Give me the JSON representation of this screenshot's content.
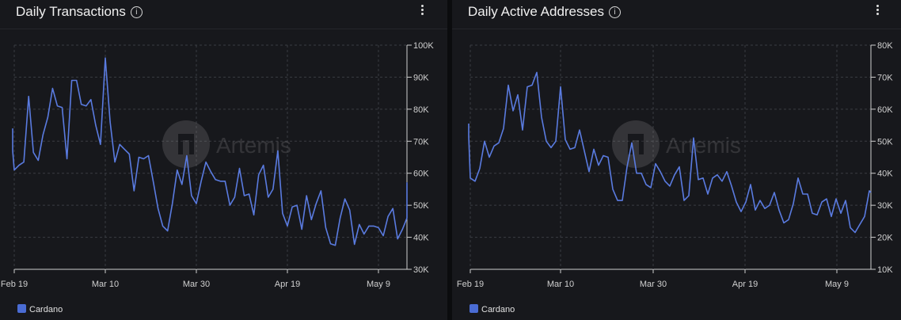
{
  "panels": [
    {
      "title": "Daily Transactions",
      "info_icon": "info-icon",
      "menu_icon": "kebab-menu-icon",
      "watermark": "Artemis",
      "legend": "Cardano"
    },
    {
      "title": "Daily Active Addresses",
      "info_icon": "info-icon",
      "menu_icon": "kebab-menu-icon",
      "watermark": "Artemis",
      "legend": "Cardano"
    }
  ],
  "colors": {
    "background": "#17181c",
    "series": "#5a7be0",
    "grid": "#3a3c42",
    "axis_text": "#d0d0d0"
  },
  "chart_data": [
    {
      "type": "line",
      "title": "Daily Transactions",
      "x_start": "2025-02-17",
      "x_tick_labels": [
        "Feb 19",
        "Mar 10",
        "Mar 30",
        "Apr 19",
        "May 9"
      ],
      "y_tick_labels": [
        "100K",
        "90K",
        "80K",
        "70K",
        "60K",
        "50K",
        "40K",
        "30K"
      ],
      "ylim": [
        30000,
        100000
      ],
      "y_axis_position": "right",
      "grid": true,
      "legend_position": "bottom-left",
      "series": [
        {
          "name": "Cardano",
          "color": "#5a7be0",
          "values": [
            74000,
            67000,
            61000,
            62500,
            63500,
            84000,
            66500,
            64000,
            72000,
            77500,
            86500,
            81000,
            80500,
            64500,
            89000,
            89000,
            81500,
            81000,
            83000,
            75000,
            69000,
            96000,
            76000,
            63500,
            69000,
            67500,
            66000,
            54500,
            65000,
            64500,
            65500,
            57500,
            49000,
            43500,
            42000,
            50500,
            61000,
            56500,
            65500,
            53000,
            50500,
            57500,
            63500,
            60500,
            58000,
            57500,
            57500,
            50000,
            52500,
            61500,
            53000,
            53500,
            47000,
            59500,
            62500,
            52500,
            55000,
            67000,
            47500,
            43500,
            49500,
            50000,
            42500,
            53000,
            45500,
            50500,
            54500,
            43000,
            38000,
            37500,
            46000,
            52000,
            48500,
            37800,
            44000,
            41000,
            43500,
            43500,
            43000,
            40500,
            46500,
            49000,
            39500,
            42500,
            46000,
            50000,
            57000,
            48000
          ]
        }
      ]
    },
    {
      "type": "line",
      "title": "Daily Active Addresses",
      "x_start": "2025-02-17",
      "x_tick_labels": [
        "Feb 19",
        "Mar 10",
        "Mar 30",
        "Apr 19",
        "May 9"
      ],
      "y_tick_labels": [
        "80K",
        "70K",
        "60K",
        "50K",
        "40K",
        "30K",
        "20K",
        "10K"
      ],
      "ylim": [
        10000,
        80000
      ],
      "y_axis_position": "right",
      "grid": true,
      "legend_position": "bottom-left",
      "series": [
        {
          "name": "Cardano",
          "color": "#5a7be0",
          "values": [
            55500,
            51500,
            38500,
            37500,
            41500,
            50000,
            45000,
            48500,
            49500,
            54000,
            67500,
            59500,
            64500,
            53500,
            67000,
            67500,
            71500,
            57500,
            50000,
            48000,
            50000,
            67000,
            50500,
            47500,
            48000,
            53500,
            47000,
            40500,
            47500,
            42500,
            45500,
            45000,
            35000,
            31500,
            31500,
            42000,
            49500,
            40000,
            40000,
            36500,
            35500,
            43000,
            40500,
            37500,
            36000,
            39500,
            42000,
            31500,
            33000,
            51000,
            38000,
            38500,
            33500,
            38500,
            39500,
            37500,
            40500,
            36000,
            31000,
            28000,
            31000,
            36500,
            28500,
            31500,
            29000,
            30000,
            34000,
            28500,
            24500,
            25500,
            30500,
            38500,
            33500,
            33500,
            27500,
            27000,
            31000,
            32000,
            26500,
            32000,
            27500,
            31500,
            23000,
            21500,
            24000,
            26500,
            34500,
            34000
          ]
        }
      ]
    }
  ]
}
